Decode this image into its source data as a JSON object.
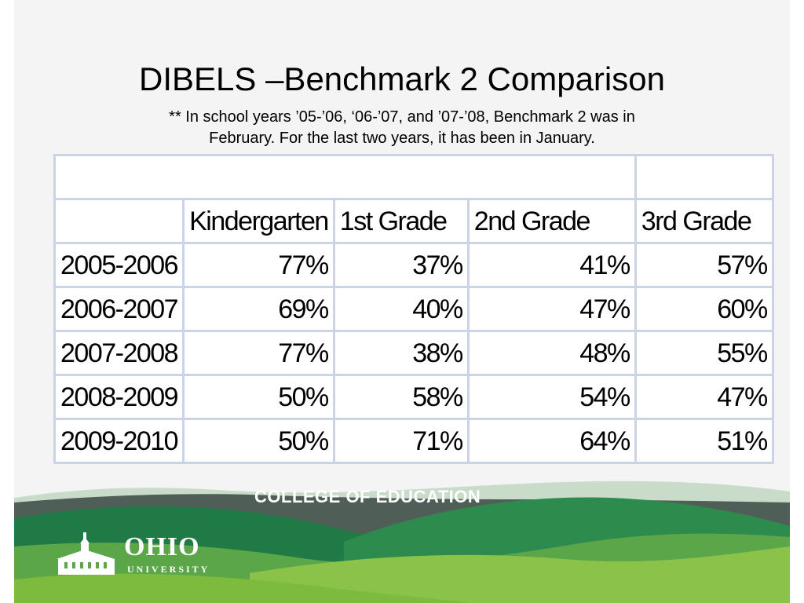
{
  "slide": {
    "title": "DIBELS –Benchmark 2 Comparison",
    "subtitle_line1": "**  In school years ’05-’06, ‘06-’07, and ’07-’08, Benchmark 2 was in",
    "subtitle_line2": "February.  For the last two years, it has been in January."
  },
  "table": {
    "headers": [
      "",
      "Kindergarten",
      "1st Grade",
      "2nd Grade",
      "3rd Grade"
    ],
    "rows": [
      [
        "2005-2006",
        "77%",
        "37%",
        "41%",
        "57%"
      ],
      [
        "2006-2007",
        "69%",
        "40%",
        "47%",
        "60%"
      ],
      [
        "2007-2008",
        "77%",
        "38%",
        "48%",
        "55%"
      ],
      [
        "2008-2009",
        "50%",
        "58%",
        "54%",
        "47%"
      ],
      [
        "2009-2010",
        "50%",
        "71%",
        "64%",
        "51%"
      ]
    ]
  },
  "footer": {
    "banner": "COLLEGE OF EDUCATION",
    "logo_name": "OHIO",
    "logo_sub": "UNIVERSITY",
    "logo_icon": "cutler-hall-icon",
    "colors": {
      "dark_green": "#1f7a45",
      "mid_green": "#3f9a50",
      "light_green": "#8bc34a",
      "gray_band": "#4f5f58"
    }
  }
}
